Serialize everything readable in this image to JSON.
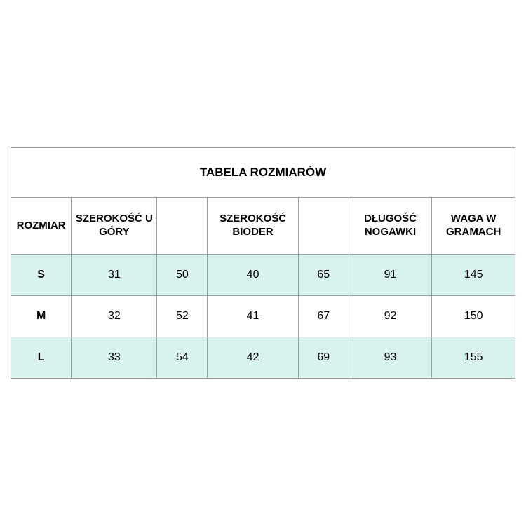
{
  "title": "TABELA ROZMIARÓW",
  "columns": [
    "ROZMIAR",
    "SZEROKOŚĆ U GÓRY",
    "",
    "SZEROKOŚĆ BIODER",
    "",
    "DŁUGOŚĆ NOGAWKI",
    "WAGA W GRAMACH"
  ],
  "rows": [
    {
      "size": "S",
      "v": [
        "31",
        "50",
        "40",
        "65",
        "91",
        "145"
      ]
    },
    {
      "size": "M",
      "v": [
        "32",
        "52",
        "41",
        "67",
        "92",
        "150"
      ]
    },
    {
      "size": "L",
      "v": [
        "33",
        "54",
        "42",
        "69",
        "93",
        "155"
      ]
    }
  ],
  "style": {
    "border_color": "#9e9e9e",
    "row_odd_bg": "#d8f2ef",
    "row_even_bg": "#ffffff",
    "title_fontsize": 17,
    "header_fontsize": 15,
    "cell_fontsize": 16
  }
}
